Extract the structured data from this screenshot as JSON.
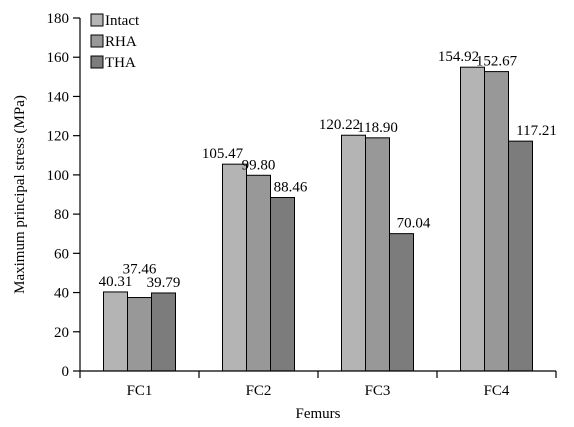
{
  "chart_data": {
    "type": "bar",
    "title": "",
    "xlabel": "Femurs",
    "ylabel": "Maximum principal stress (MPa)",
    "categories": [
      "FC1",
      "FC2",
      "FC3",
      "FC4"
    ],
    "ylim": [
      0,
      180
    ],
    "yticks": [
      0,
      20,
      40,
      60,
      80,
      100,
      120,
      140,
      160,
      180
    ],
    "grid": false,
    "legend_position": "top-left",
    "series": [
      {
        "name": "Intact",
        "values": [
          40.31,
          105.47,
          120.22,
          154.92
        ],
        "labels": [
          "40.31",
          "105.47",
          "120.22",
          "154.92"
        ],
        "color": "#b4b4b4"
      },
      {
        "name": "RHA",
        "values": [
          37.46,
          99.8,
          118.9,
          152.67
        ],
        "labels": [
          "37.46",
          "99.80",
          "118.90",
          "152.67"
        ],
        "color": "#989898"
      },
      {
        "name": "THA",
        "values": [
          39.79,
          88.46,
          70.04,
          117.21
        ],
        "labels": [
          "39.79",
          "88.46",
          "70.04",
          "117.21"
        ],
        "color": "#7c7c7c"
      }
    ]
  }
}
